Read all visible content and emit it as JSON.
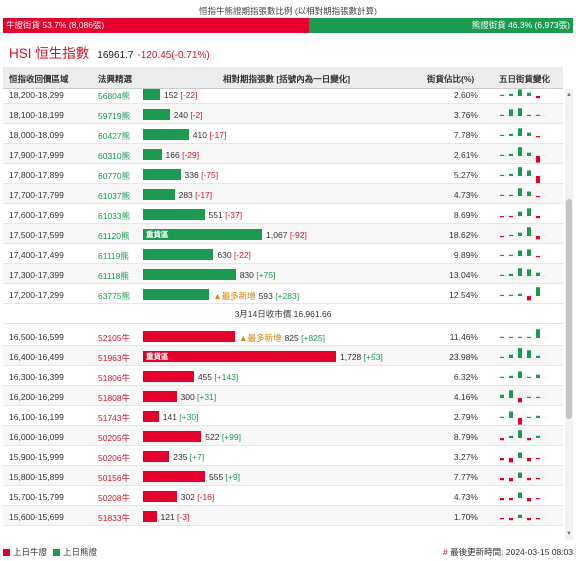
{
  "ratio": {
    "caption": "恒指牛熊證期指張數比例 (以相對期指張數計算)",
    "bull_label": "牛證街貨 53.7% (8,086張)",
    "bear_label": "熊證街貨 46.3% (6,973張)",
    "bull_fraction": 0.537,
    "bull_color": "#e4002b",
    "bear_color": "#1a9b4f"
  },
  "index": {
    "name": "HSI 恒生指數",
    "price": "16961.7",
    "change": "-120.45(-0.71%)"
  },
  "table": {
    "headers": {
      "range": "恒指收回價區域",
      "code": "法興精選",
      "contracts": "相對期指張數 [括號內為一日變化]",
      "street": "街貨佔比(%)",
      "five_day": "五日街貨變化"
    },
    "max_value": 1728,
    "bear_rows": [
      {
        "range": "18,200-18,299",
        "code": "56804熊",
        "value": 152,
        "value_text": "152",
        "delta": "[-22]",
        "pct": "2.60%",
        "hot": false,
        "newest": false,
        "spark": [
          1,
          2,
          6,
          3,
          -2
        ]
      },
      {
        "range": "18,100-18,199",
        "code": "59719熊",
        "value": 240,
        "value_text": "240",
        "delta": "[-2]",
        "pct": "3.76%",
        "hot": false,
        "newest": false,
        "spark": [
          0,
          6,
          7,
          1,
          1
        ]
      },
      {
        "range": "18,000-18,099",
        "code": "60427熊",
        "value": 410,
        "value_text": "410",
        "delta": "[-17]",
        "pct": "7.78%",
        "hot": false,
        "newest": false,
        "spark": [
          1,
          2,
          7,
          3,
          -1
        ]
      },
      {
        "range": "17,900-17,999",
        "code": "60310熊",
        "value": 166,
        "value_text": "166",
        "delta": "[-29]",
        "pct": "2.61%",
        "hot": false,
        "newest": false,
        "spark": [
          1,
          2,
          8,
          3,
          -6
        ]
      },
      {
        "range": "17,800-17,899",
        "code": "60770熊",
        "value": 336,
        "value_text": "336",
        "delta": "[-75]",
        "pct": "5.27%",
        "hot": false,
        "newest": false,
        "spark": [
          1,
          2,
          8,
          5,
          -7
        ]
      },
      {
        "range": "17,700-17,799",
        "code": "61037熊",
        "value": 283,
        "value_text": "283",
        "delta": "[-17]",
        "pct": "4.73%",
        "hot": false,
        "newest": false,
        "spark": [
          1,
          1,
          7,
          4,
          -1
        ]
      },
      {
        "range": "17,600-17,699",
        "code": "61033熊",
        "value": 551,
        "value_text": "551",
        "delta": "[-37]",
        "pct": "8.69%",
        "hot": false,
        "newest": false,
        "spark": [
          -1,
          -1,
          4,
          7,
          -2
        ]
      },
      {
        "range": "17,500-17,599",
        "code": "61120熊",
        "value": 1067,
        "value_text": "1,067",
        "delta": "[-92]",
        "pct": "18.62%",
        "hot": true,
        "newest": false,
        "spark": [
          -1,
          1,
          3,
          8,
          -3
        ]
      },
      {
        "range": "17,400-17,499",
        "code": "61119熊",
        "value": 630,
        "value_text": "630",
        "delta": "[-22]",
        "pct": "9.89%",
        "hot": false,
        "newest": false,
        "spark": [
          1,
          1,
          5,
          6,
          -1
        ]
      },
      {
        "range": "17,300-17,399",
        "code": "61118熊",
        "value": 830,
        "value_text": "830",
        "delta": "[+75]",
        "pct": "13.04%",
        "hot": false,
        "newest": false,
        "spark": [
          1,
          2,
          7,
          6,
          3
        ]
      },
      {
        "range": "17,200-17,299",
        "code": "63775熊",
        "value": 593,
        "value_text": "593",
        "delta": "[+283]",
        "pct": "12.54%",
        "hot": false,
        "newest": true,
        "spark": [
          1,
          1,
          2,
          -4,
          8
        ]
      }
    ],
    "close_label": "3月14日收市價 16,961.66",
    "bull_rows": [
      {
        "range": "16,500-16,599",
        "code": "52105牛",
        "value": 825,
        "value_text": "825",
        "delta": "[+825]",
        "pct": "11.46%",
        "hot": false,
        "newest": true,
        "spark": [
          0,
          0,
          0,
          0,
          8
        ]
      },
      {
        "range": "16,400-16,499",
        "code": "51963牛",
        "value": 1728,
        "value_text": "1,728",
        "delta": "[+53]",
        "pct": "23.98%",
        "hot": true,
        "newest": false,
        "spark": [
          1,
          3,
          9,
          7,
          2
        ]
      },
      {
        "range": "16,300-16,399",
        "code": "51806牛",
        "value": 455,
        "value_text": "455",
        "delta": "[+143]",
        "pct": "6.32%",
        "hot": false,
        "newest": false,
        "spark": [
          1,
          2,
          6,
          1,
          3
        ]
      },
      {
        "range": "16,200-16,299",
        "code": "51808牛",
        "value": 300,
        "value_text": "300",
        "delta": "[+31]",
        "pct": "4.16%",
        "hot": false,
        "newest": false,
        "spark": [
          3,
          7,
          -4,
          1,
          1
        ]
      },
      {
        "range": "16,100-16,199",
        "code": "51743牛",
        "value": 141,
        "value_text": "141",
        "delta": "[+30]",
        "pct": "2.79%",
        "hot": false,
        "newest": false,
        "spark": [
          1,
          6,
          -6,
          1,
          2
        ]
      },
      {
        "range": "16,000-16,099",
        "code": "50205牛",
        "value": 522,
        "value_text": "522",
        "delta": "[+99]",
        "pct": "8.79%",
        "hot": false,
        "newest": false,
        "spark": [
          -2,
          2,
          7,
          -2,
          2
        ]
      },
      {
        "range": "15,900-15,999",
        "code": "50206牛",
        "value": 235,
        "value_text": "235",
        "delta": "[+7]",
        "pct": "3.27%",
        "hot": false,
        "newest": false,
        "spark": [
          -2,
          -4,
          5,
          -3,
          -1
        ]
      },
      {
        "range": "15,800-15,899",
        "code": "50156牛",
        "value": 555,
        "value_text": "555",
        "delta": "[+9]",
        "pct": "7.77%",
        "hot": false,
        "newest": false,
        "spark": [
          -2,
          -3,
          5,
          -2,
          -1
        ]
      },
      {
        "range": "15,700-15,799",
        "code": "50208牛",
        "value": 302,
        "value_text": "302",
        "delta": "[-16]",
        "pct": "4.73%",
        "hot": false,
        "newest": false,
        "spark": [
          -2,
          -2,
          5,
          -3,
          -1
        ]
      },
      {
        "range": "15,600-15,699",
        "code": "51833牛",
        "value": 121,
        "value_text": "121",
        "delta": "[-3]",
        "pct": "1.70%",
        "hot": false,
        "newest": false,
        "spark": [
          -1,
          -2,
          3,
          -2,
          -1
        ]
      }
    ],
    "hot_label": "重貨區",
    "newest_label": "▲最多新增"
  },
  "legend": {
    "bull": "上日牛證",
    "bear": "上日熊證"
  },
  "updated": {
    "hash": "#",
    "text": "最後更新時間: 2024-03-15 08:03"
  },
  "icons": {
    "scroll_up": "scroll-up-arrow-icon",
    "scroll_down": "scroll-down-arrow-icon"
  }
}
